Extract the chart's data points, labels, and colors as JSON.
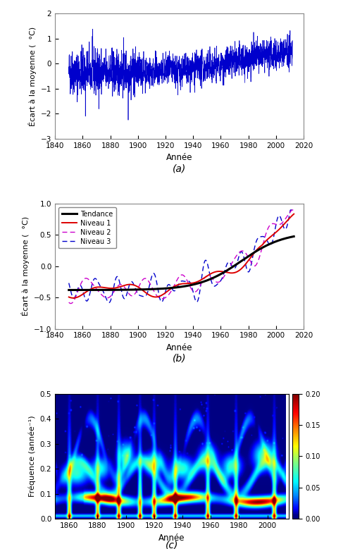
{
  "fig_width": 5.04,
  "fig_height": 7.79,
  "dpi": 100,
  "bg_color": "#ffffff",
  "panel_a": {
    "xlim": [
      1840,
      2020
    ],
    "ylim": [
      -3,
      2
    ],
    "yticks": [
      -3,
      -2,
      -1,
      0,
      1,
      2
    ],
    "xticks": [
      1840,
      1860,
      1880,
      1900,
      1920,
      1940,
      1960,
      1980,
      2000,
      2020
    ],
    "xlabel": "Année",
    "ylabel": "Écart à la moyenne (  °C)",
    "line_color": "#0000cc",
    "line_width": 0.5,
    "label": "(a)"
  },
  "panel_b": {
    "xlim": [
      1840,
      2020
    ],
    "ylim": [
      -1,
      1
    ],
    "yticks": [
      -1,
      -0.5,
      0,
      0.5,
      1
    ],
    "xticks": [
      1840,
      1860,
      1880,
      1900,
      1920,
      1940,
      1960,
      1980,
      2000,
      2020
    ],
    "xlabel": "Année",
    "ylabel": "Écart à la moyenne (  °C)",
    "tendance_color": "#000000",
    "niveau1_color": "#dd0000",
    "niveau2_color": "#cc00cc",
    "niveau3_color": "#0000cc",
    "tendance_lw": 2.2,
    "niveau1_lw": 1.4,
    "niveau2_lw": 1.0,
    "niveau3_lw": 1.0,
    "label": "(b)",
    "legend_labels": [
      "Tendance",
      "Niveau 1",
      "Niveau 2",
      "Niveau 3"
    ]
  },
  "panel_c": {
    "xlim": [
      1850,
      2015
    ],
    "ylim": [
      0,
      0.5
    ],
    "yticks": [
      0,
      0.1,
      0.2,
      0.3,
      0.4,
      0.5
    ],
    "xticks": [
      1860,
      1880,
      1900,
      1920,
      1940,
      1960,
      1980,
      2000
    ],
    "xlabel": "Année",
    "ylabel": "Fréquence (année⁻¹)",
    "cbar_ticks": [
      0,
      0.05,
      0.1,
      0.15,
      0.2
    ],
    "label": "(c)"
  }
}
